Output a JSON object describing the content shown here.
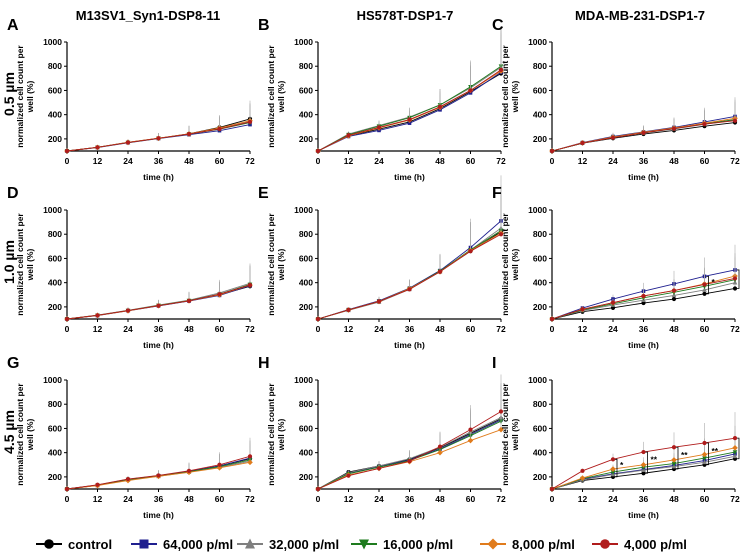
{
  "column_titles": [
    "M13SV1_Syn1-DSP8-11",
    "HS578T-DSP1-7",
    "MDA-MB-231-DSP1-7"
  ],
  "row_labels": [
    "0.5 µm",
    "1.0 µm",
    "4.5 µm"
  ],
  "legend": [
    {
      "label": "control",
      "color": "#000000",
      "marker": "circle"
    },
    {
      "label": "64,000 p/ml",
      "color": "#1f1f8f",
      "marker": "square"
    },
    {
      "label": "32,000 p/ml",
      "color": "#7f7f7f",
      "marker": "triangle-up"
    },
    {
      "label": "16,000 p/ml",
      "color": "#1e7b1e",
      "marker": "triangle-down"
    },
    {
      "label": "8,000 p/ml",
      "color": "#e07b1c",
      "marker": "diamond"
    },
    {
      "label": "4,000 p/ml",
      "color": "#b01c1c",
      "marker": "circle"
    }
  ],
  "chart_data": [
    {
      "panel": "A",
      "type": "line",
      "xlabel": "time (h)",
      "ylabel": "normalized cell count per well (%)",
      "x": [
        0,
        12,
        24,
        36,
        48,
        60,
        72
      ],
      "ylim": [
        100,
        1000
      ],
      "yticks": [
        200,
        400,
        600,
        800,
        1000
      ],
      "series": [
        [
          100,
          130,
          172,
          205,
          242,
          295,
          365
        ],
        [
          100,
          128,
          168,
          203,
          235,
          268,
          318
        ],
        [
          100,
          130,
          170,
          205,
          240,
          285,
          345
        ],
        [
          100,
          130,
          170,
          205,
          240,
          280,
          335
        ],
        [
          100,
          130,
          172,
          206,
          242,
          290,
          350
        ],
        [
          100,
          130,
          170,
          205,
          240,
          282,
          340
        ]
      ],
      "annotations": []
    },
    {
      "panel": "B",
      "type": "line",
      "xlabel": "time (h)",
      "ylabel": "normalized cell count per well (%)",
      "x": [
        0,
        12,
        24,
        36,
        48,
        60,
        72
      ],
      "ylim": [
        100,
        1000
      ],
      "yticks": [
        200,
        400,
        600,
        800,
        1000
      ],
      "series": [
        [
          100,
          225,
          280,
          340,
          450,
          590,
          740
        ],
        [
          100,
          220,
          270,
          330,
          440,
          580,
          750
        ],
        [
          100,
          240,
          310,
          380,
          480,
          620,
          790
        ],
        [
          100,
          235,
          305,
          375,
          480,
          630,
          800
        ],
        [
          100,
          225,
          290,
          355,
          460,
          600,
          760
        ],
        [
          100,
          230,
          295,
          360,
          465,
          600,
          770
        ]
      ],
      "annotations": []
    },
    {
      "panel": "C",
      "type": "line",
      "xlabel": "time (h)",
      "ylabel": "normalized cell count per well (%)",
      "x": [
        0,
        12,
        24,
        36,
        48,
        60,
        72
      ],
      "ylim": [
        100,
        1000
      ],
      "yticks": [
        200,
        400,
        600,
        800,
        1000
      ],
      "series": [
        [
          100,
          165,
          205,
          240,
          270,
          305,
          335
        ],
        [
          100,
          170,
          220,
          258,
          295,
          340,
          385
        ],
        [
          100,
          165,
          210,
          248,
          282,
          320,
          355
        ],
        [
          100,
          165,
          212,
          250,
          285,
          325,
          360
        ],
        [
          100,
          168,
          215,
          255,
          290,
          330,
          370
        ],
        [
          100,
          166,
          210,
          250,
          285,
          322,
          350
        ]
      ],
      "annotations": []
    },
    {
      "panel": "D",
      "type": "line",
      "xlabel": "time (h)",
      "ylabel": "normalized cell count per well (%)",
      "x": [
        0,
        12,
        24,
        36,
        48,
        60,
        72
      ],
      "ylim": [
        100,
        1000
      ],
      "yticks": [
        200,
        400,
        600,
        800,
        1000
      ],
      "series": [
        [
          100,
          130,
          170,
          210,
          250,
          300,
          370
        ],
        [
          100,
          128,
          168,
          208,
          248,
          295,
          375
        ],
        [
          100,
          132,
          172,
          215,
          255,
          315,
          395
        ],
        [
          100,
          130,
          170,
          212,
          252,
          305,
          385
        ],
        [
          100,
          130,
          168,
          210,
          250,
          300,
          380
        ],
        [
          100,
          130,
          170,
          210,
          250,
          305,
          380
        ]
      ],
      "annotations": []
    },
    {
      "panel": "E",
      "type": "line",
      "xlabel": "time (h)",
      "ylabel": "normalized cell count per well (%)",
      "x": [
        0,
        12,
        24,
        36,
        48,
        60,
        72
      ],
      "ylim": [
        100,
        1000
      ],
      "yticks": [
        200,
        400,
        600,
        800,
        1000
      ],
      "series": [
        [
          100,
          175,
          245,
          350,
          495,
          660,
          820
        ],
        [
          100,
          178,
          250,
          355,
          500,
          690,
          910
        ],
        [
          100,
          172,
          240,
          345,
          490,
          670,
          850
        ],
        [
          100,
          175,
          245,
          350,
          495,
          670,
          830
        ],
        [
          100,
          175,
          245,
          350,
          490,
          665,
          810
        ],
        [
          100,
          175,
          245,
          345,
          490,
          660,
          800
        ]
      ],
      "annotations": []
    },
    {
      "panel": "F",
      "type": "line",
      "xlabel": "time (h)",
      "ylabel": "normalized cell count per well (%)",
      "x": [
        0,
        12,
        24,
        36,
        48,
        60,
        72
      ],
      "ylim": [
        100,
        1000
      ],
      "yticks": [
        200,
        400,
        600,
        800,
        1000
      ],
      "series": [
        [
          100,
          160,
          192,
          232,
          265,
          308,
          352
        ],
        [
          100,
          190,
          265,
          330,
          390,
          452,
          505
        ],
        [
          100,
          170,
          215,
          255,
          295,
          340,
          400
        ],
        [
          100,
          175,
          225,
          275,
          320,
          370,
          425
        ],
        [
          100,
          180,
          235,
          290,
          335,
          390,
          455
        ],
        [
          100,
          180,
          235,
          290,
          335,
          385,
          435
        ]
      ],
      "annotations": [
        "*",
        "*"
      ]
    },
    {
      "panel": "G",
      "type": "line",
      "xlabel": "time (h)",
      "ylabel": "normalized cell count per well (%)",
      "x": [
        0,
        12,
        24,
        36,
        48,
        60,
        72
      ],
      "ylim": [
        100,
        1000
      ],
      "yticks": [
        200,
        400,
        600,
        800,
        1000
      ],
      "series": [
        [
          100,
          132,
          180,
          210,
          245,
          290,
          350
        ],
        [
          100,
          130,
          178,
          210,
          245,
          290,
          355
        ],
        [
          100,
          130,
          175,
          205,
          240,
          280,
          330
        ],
        [
          100,
          130,
          178,
          208,
          242,
          285,
          340
        ],
        [
          100,
          128,
          170,
          205,
          238,
          275,
          320
        ],
        [
          100,
          135,
          182,
          212,
          250,
          300,
          370
        ]
      ],
      "annotations": []
    },
    {
      "panel": "H",
      "type": "line",
      "xlabel": "time (h)",
      "ylabel": "normalized cell count per well (%)",
      "x": [
        0,
        12,
        24,
        36,
        48,
        60,
        72
      ],
      "ylim": [
        100,
        1000
      ],
      "yticks": [
        200,
        400,
        600,
        800,
        1000
      ],
      "series": [
        [
          100,
          240,
          290,
          345,
          440,
          560,
          680
        ],
        [
          100,
          230,
          285,
          340,
          430,
          550,
          670
        ],
        [
          100,
          235,
          290,
          350,
          445,
          570,
          690
        ],
        [
          100,
          225,
          280,
          335,
          425,
          540,
          660
        ],
        [
          100,
          215,
          270,
          325,
          400,
          500,
          590
        ],
        [
          100,
          210,
          270,
          330,
          450,
          590,
          740
        ]
      ],
      "annotations": []
    },
    {
      "panel": "I",
      "type": "line",
      "xlabel": "time (h)",
      "ylabel": "normalized cell count per well (%)",
      "x": [
        0,
        12,
        24,
        36,
        48,
        60,
        72
      ],
      "ylim": [
        100,
        1000
      ],
      "yticks": [
        200,
        400,
        600,
        800,
        1000
      ],
      "series": [
        [
          100,
          170,
          200,
          230,
          265,
          300,
          350
        ],
        [
          100,
          180,
          225,
          260,
          295,
          335,
          390
        ],
        [
          100,
          175,
          220,
          255,
          285,
          320,
          370
        ],
        [
          100,
          185,
          240,
          280,
          310,
          355,
          405
        ],
        [
          100,
          190,
          265,
          300,
          340,
          385,
          440
        ],
        [
          100,
          250,
          345,
          405,
          445,
          480,
          520
        ]
      ],
      "annotations": [
        "*",
        "**",
        "**",
        "**",
        "**"
      ]
    }
  ]
}
